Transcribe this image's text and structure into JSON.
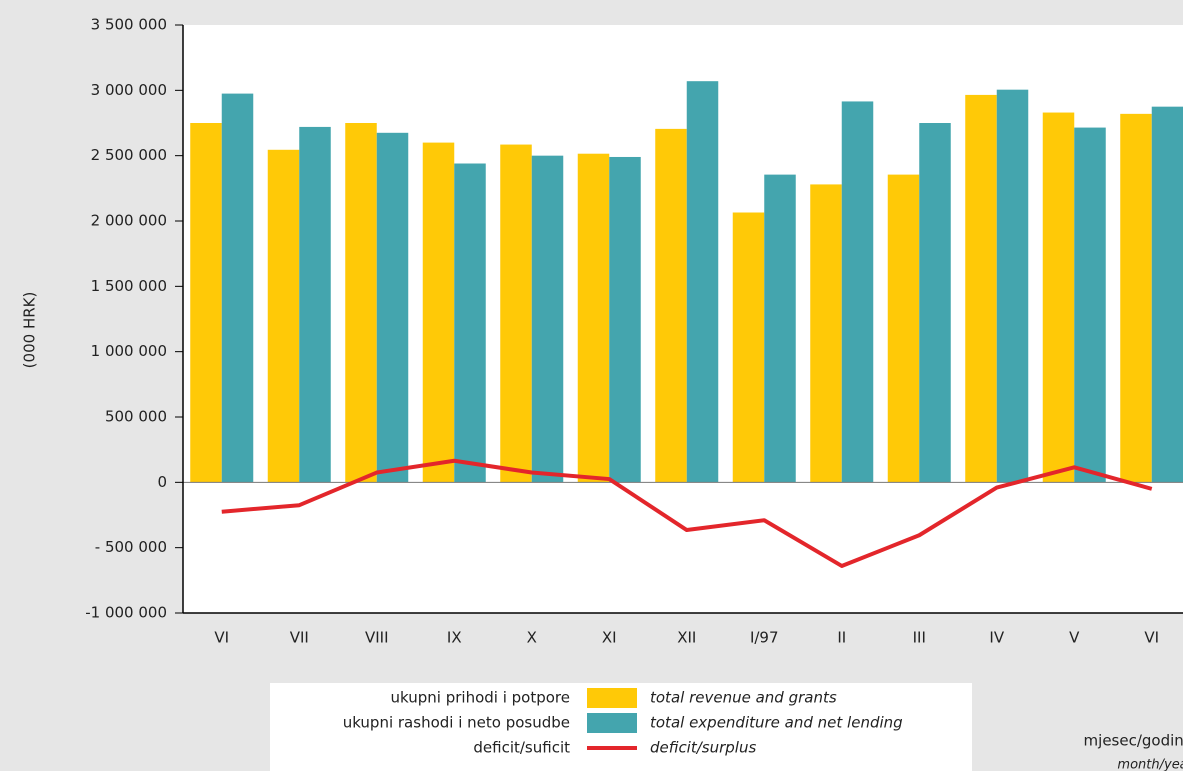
{
  "chart_data": {
    "type": "bar",
    "y_label": "(000 HRK)",
    "x_label": "mjesec/godina",
    "x_label_en": "month/year",
    "categories": [
      "VI",
      "VII",
      "VIII",
      "IX",
      "X",
      "XI",
      "XII",
      "I/97",
      "II",
      "III",
      "IV",
      "V",
      "VI"
    ],
    "series": [
      {
        "name": "ukupni prihodi i potpore",
        "name_en": "total revenue and grants",
        "type": "bar",
        "color": "#ffc907",
        "values": [
          2750000,
          2545000,
          2750000,
          2600000,
          2585000,
          2515000,
          2705000,
          2065000,
          2280000,
          2355000,
          2965000,
          2830000,
          2820000
        ]
      },
      {
        "name": "ukupni rashodi i neto posudbe",
        "name_en": "total expenditure and net lending",
        "type": "bar",
        "color": "#44a5ae",
        "values": [
          2975000,
          2720000,
          2675000,
          2440000,
          2500000,
          2490000,
          3070000,
          2355000,
          2915000,
          2750000,
          3005000,
          2715000,
          2875000
        ]
      },
      {
        "name": "deficit/suficit",
        "name_en": "deficit/surplus",
        "type": "line",
        "color": "#e3262b",
        "values": [
          -225000,
          -175000,
          75000,
          165000,
          75000,
          25000,
          -365000,
          -290000,
          -640000,
          -405000,
          -40000,
          115000,
          -50000
        ]
      }
    ],
    "ylim": [
      -1000000,
      3500000
    ],
    "yticks": [
      {
        "value": -1000000,
        "label": "-1 000 000"
      },
      {
        "value": -500000,
        "label": "- 500 000"
      },
      0,
      {
        "value": 500000,
        "label": "500 000"
      },
      {
        "value": 1000000,
        "label": "1 000 000"
      },
      {
        "value": 1500000,
        "label": "1 500 000"
      },
      {
        "value": 2000000,
        "label": "2 000 000"
      },
      {
        "value": 2500000,
        "label": "2 500 000"
      },
      {
        "value": 3000000,
        "label": "3 000 000"
      },
      {
        "value": 3500000,
        "label": "3 500 000"
      }
    ]
  }
}
